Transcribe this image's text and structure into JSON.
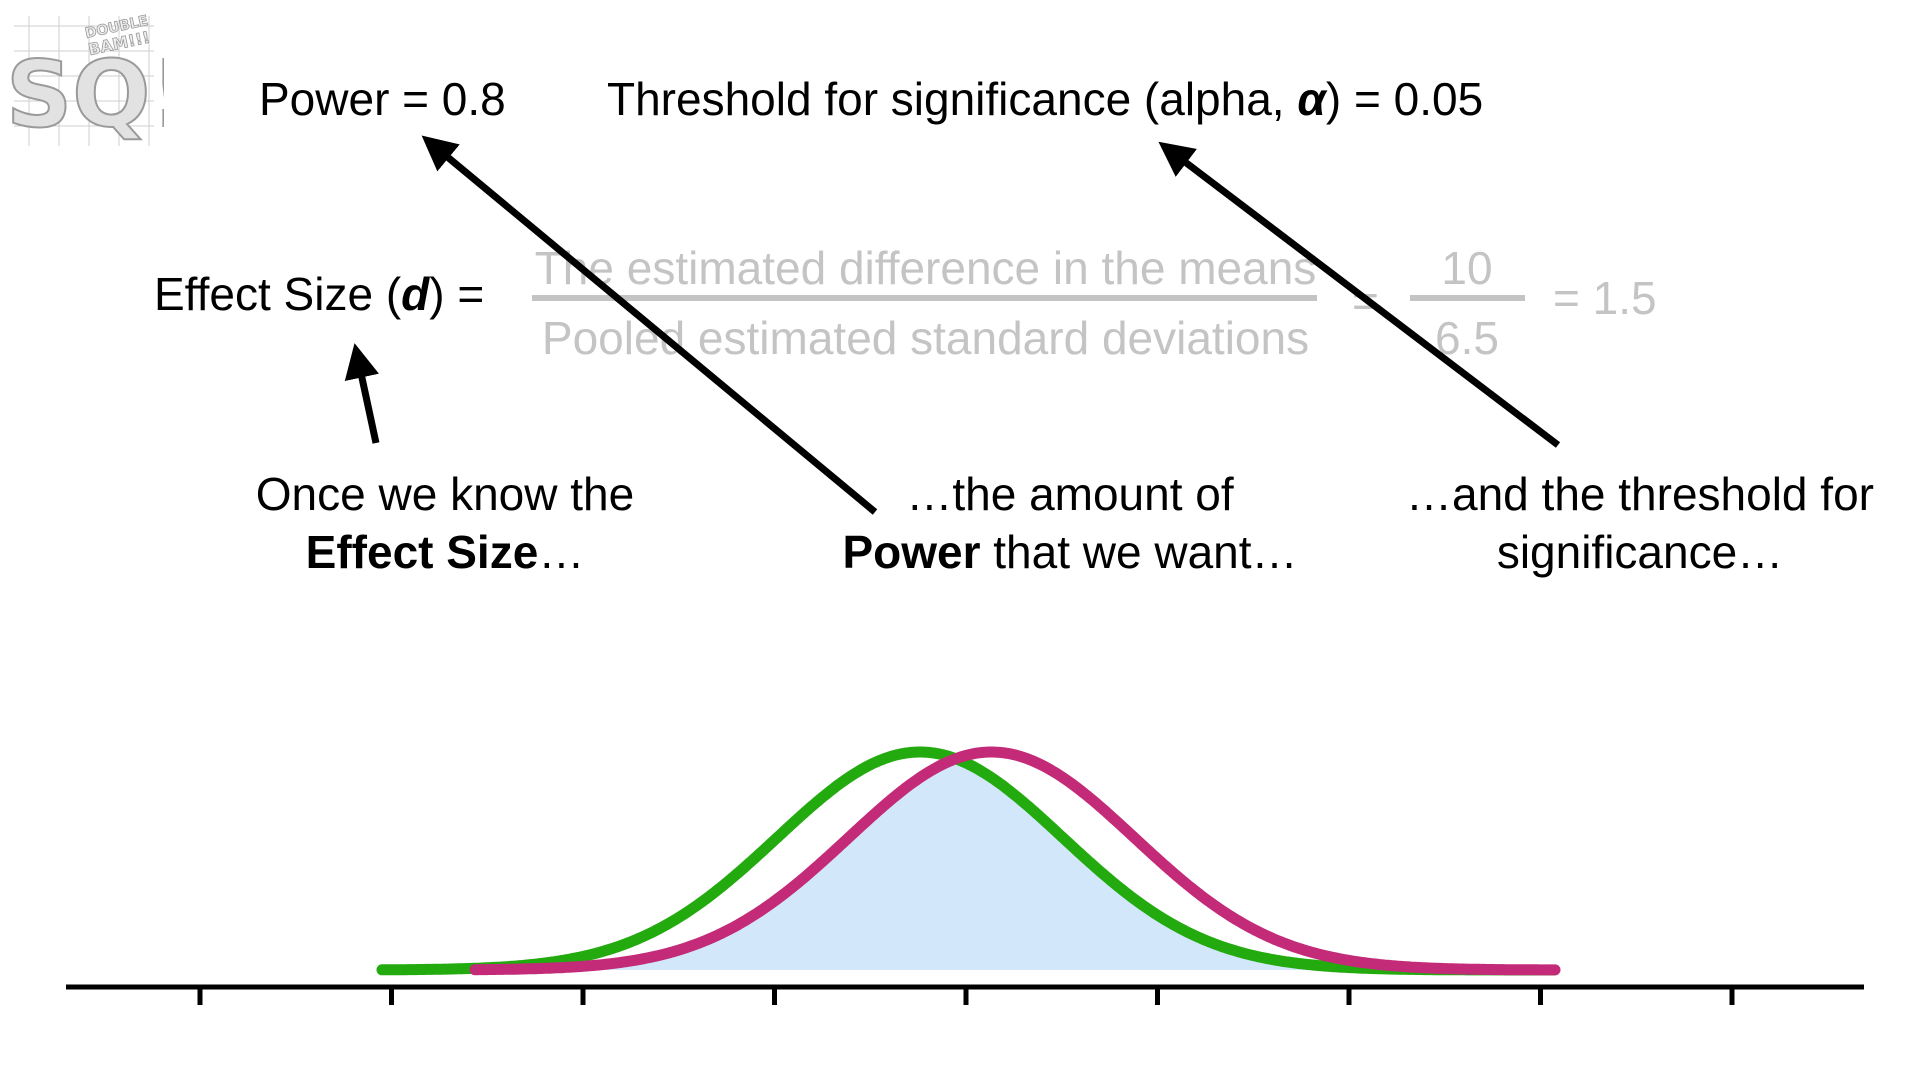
{
  "logo": {
    "line1": "DOUBLE",
    "line2": "BAM!!!",
    "letters": "SQ!",
    "icon": "statquest-logo"
  },
  "top": {
    "power_label": "Power = 0.8",
    "threshold_prefix": "Threshold for significance (alpha, ",
    "threshold_symbol": "α",
    "threshold_suffix": ") = 0.05"
  },
  "effect_size": {
    "lhs_prefix": "Effect Size (",
    "lhs_symbol": "d",
    "lhs_suffix": ") =",
    "numerator": "The estimated difference in the means",
    "denominator": "Pooled estimated standard deviations",
    "equals": "=",
    "num_value": "10",
    "den_value": "6.5",
    "result": "= 1.5"
  },
  "captions": {
    "effect": {
      "line1": "Once we know the",
      "line2_bold": "Effect Size",
      "line2_rest": "…"
    },
    "power": {
      "line1": "…the amount of",
      "line2_bold": "Power",
      "line2_rest": " that we want…"
    },
    "threshold": {
      "line1": "…and the threshold for",
      "line2": "significance…"
    }
  },
  "colors": {
    "green_curve": "#22aa0e",
    "magenta_curve": "#c32a78",
    "overlap_fill": "#d3e7fa",
    "faded_text": "#c4c4c4",
    "arrow": "#000000"
  },
  "distributions": {
    "green": {
      "mean": 0,
      "sd": 1
    },
    "magenta": {
      "mean": 0.5,
      "sd": 1
    },
    "axis_ticks": 9
  }
}
